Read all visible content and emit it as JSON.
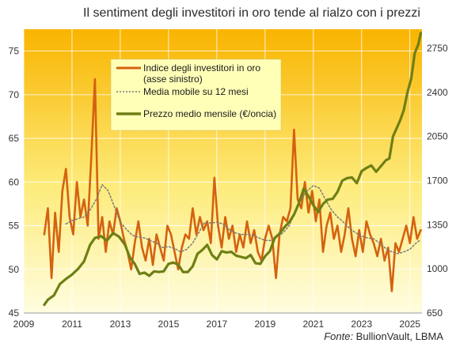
{
  "title": "Il sentiment degli investitori in oro tende al rialzo con i prezzi",
  "source_prefix": "Fonte:",
  "source_text": " BullionVault, LBMA",
  "chart_data": {
    "type": "line",
    "title": "Il sentiment degli investitori in oro tende al rialzo con i prezzi",
    "x_ticks": [
      "2009",
      "2011",
      "2013",
      "2015",
      "2017",
      "2019",
      "2021",
      "2023",
      "2025"
    ],
    "x_range": [
      2009.0,
      2025.5
    ],
    "y_left": {
      "ticks": [
        "45",
        "50",
        "55",
        "60",
        "65",
        "70",
        "75"
      ],
      "range": [
        45,
        77.5
      ]
    },
    "y_right": {
      "ticks": [
        "650",
        "1000",
        "1350",
        "1700",
        "2050",
        "2400",
        "2750"
      ],
      "range": [
        650,
        2900
      ]
    },
    "grid": true,
    "legend_position": "top-center",
    "colors": {
      "index": "#d4620f",
      "moving_average": "#7a7a7a",
      "price": "#6e7f14",
      "bg_top": "#f9b400",
      "bg_bottom": "#fffccf"
    },
    "series": [
      {
        "name": "Indice degli investitori in oro",
        "name_line2": "(asse sinistro)",
        "axis": "left",
        "x": [
          2009.85,
          2010.0,
          2010.15,
          2010.3,
          2010.45,
          2010.6,
          2010.75,
          2010.9,
          2011.05,
          2011.2,
          2011.35,
          2011.5,
          2011.65,
          2011.8,
          2011.95,
          2012.1,
          2012.25,
          2012.4,
          2012.55,
          2012.7,
          2012.85,
          2013.0,
          2013.15,
          2013.3,
          2013.45,
          2013.6,
          2013.75,
          2013.9,
          2014.05,
          2014.2,
          2014.35,
          2014.5,
          2014.65,
          2014.8,
          2014.95,
          2015.1,
          2015.25,
          2015.4,
          2015.55,
          2015.7,
          2015.85,
          2016.0,
          2016.15,
          2016.3,
          2016.45,
          2016.6,
          2016.75,
          2016.9,
          2017.05,
          2017.2,
          2017.35,
          2017.5,
          2017.65,
          2017.8,
          2017.95,
          2018.1,
          2018.25,
          2018.4,
          2018.55,
          2018.7,
          2018.85,
          2019.0,
          2019.15,
          2019.3,
          2019.45,
          2019.6,
          2019.75,
          2019.9,
          2020.05,
          2020.2,
          2020.35,
          2020.5,
          2020.65,
          2020.8,
          2020.95,
          2021.1,
          2021.25,
          2021.4,
          2021.55,
          2021.7,
          2021.85,
          2022.0,
          2022.15,
          2022.3,
          2022.45,
          2022.6,
          2022.75,
          2022.9,
          2023.05,
          2023.2,
          2023.35,
          2023.5,
          2023.65,
          2023.8,
          2023.95,
          2024.1,
          2024.25,
          2024.4,
          2024.55,
          2024.7,
          2024.85,
          2025.0,
          2025.15,
          2025.3,
          2025.45
        ],
        "values": [
          54.0,
          57.0,
          49.0,
          56.5,
          52.0,
          59.0,
          61.5,
          56.0,
          54.0,
          60.0,
          56.0,
          58.0,
          55.0,
          63.0,
          71.8,
          53.5,
          56.0,
          52.0,
          55.5,
          54.0,
          57.0,
          55.5,
          53.5,
          52.0,
          50.0,
          53.0,
          55.5,
          52.5,
          51.0,
          53.5,
          50.5,
          54.0,
          52.5,
          51.0,
          55.0,
          54.0,
          52.0,
          50.0,
          52.5,
          54.0,
          53.5,
          57.0,
          54.0,
          56.0,
          54.5,
          55.5,
          53.0,
          60.5,
          55.0,
          52.5,
          56.0,
          53.5,
          55.0,
          52.0,
          54.0,
          52.5,
          55.5,
          53.0,
          54.5,
          52.0,
          51.0,
          53.5,
          55.0,
          53.5,
          49.0,
          54.0,
          56.0,
          55.5,
          57.0,
          66.0,
          58.0,
          57.0,
          60.0,
          56.5,
          59.0,
          55.5,
          58.0,
          52.0,
          55.0,
          56.5,
          53.5,
          55.0,
          52.0,
          54.0,
          57.0,
          53.5,
          51.5,
          54.5,
          52.0,
          55.5,
          54.0,
          53.0,
          51.5,
          53.5,
          51.0,
          52.5,
          47.5,
          53.0,
          52.0,
          53.5,
          55.0,
          53.0,
          56.0,
          53.5,
          54.5
        ]
      },
      {
        "name": "Media mobile su 12 mesi",
        "axis": "left",
        "x": [
          2010.75,
          2011.0,
          2011.25,
          2011.5,
          2011.75,
          2012.0,
          2012.25,
          2012.5,
          2012.75,
          2013.0,
          2013.25,
          2013.5,
          2013.75,
          2014.0,
          2014.25,
          2014.5,
          2014.75,
          2015.0,
          2015.25,
          2015.5,
          2015.75,
          2016.0,
          2016.25,
          2016.5,
          2016.75,
          2017.0,
          2017.25,
          2017.5,
          2017.75,
          2018.0,
          2018.25,
          2018.5,
          2018.75,
          2019.0,
          2019.25,
          2019.5,
          2019.75,
          2020.0,
          2020.25,
          2020.5,
          2020.75,
          2021.0,
          2021.25,
          2021.5,
          2021.75,
          2022.0,
          2022.25,
          2022.5,
          2022.75,
          2023.0,
          2023.25,
          2023.5,
          2023.75,
          2024.0,
          2024.25,
          2024.5,
          2024.75,
          2025.0,
          2025.25,
          2025.45
        ],
        "values": [
          55.2,
          55.6,
          55.8,
          56.0,
          56.8,
          58.0,
          59.7,
          59.0,
          57.2,
          55.4,
          54.6,
          53.9,
          53.7,
          53.6,
          53.3,
          53.0,
          52.5,
          52.6,
          52.4,
          52.0,
          52.3,
          53.0,
          54.2,
          55.4,
          55.3,
          55.4,
          55.2,
          54.6,
          54.2,
          54.0,
          54.0,
          53.9,
          53.6,
          53.3,
          53.3,
          53.7,
          54.2,
          55.0,
          56.6,
          58.0,
          59.0,
          59.6,
          59.3,
          58.0,
          56.8,
          56.0,
          55.4,
          54.7,
          54.2,
          53.8,
          53.6,
          53.5,
          53.0,
          52.4,
          52.0,
          51.8,
          52.0,
          52.3,
          53.0,
          53.4
        ]
      },
      {
        "name": "Prezzo medio mensile (€/oncia)",
        "axis": "right",
        "x": [
          2009.85,
          2010.0,
          2010.25,
          2010.5,
          2010.75,
          2011.0,
          2011.25,
          2011.5,
          2011.75,
          2011.95,
          2012.2,
          2012.45,
          2012.7,
          2012.95,
          2013.2,
          2013.4,
          2013.6,
          2013.8,
          2014.0,
          2014.2,
          2014.4,
          2014.6,
          2014.8,
          2015.0,
          2015.2,
          2015.4,
          2015.6,
          2015.8,
          2016.0,
          2016.2,
          2016.4,
          2016.6,
          2016.8,
          2017.0,
          2017.2,
          2017.4,
          2017.6,
          2017.8,
          2018.0,
          2018.2,
          2018.4,
          2018.6,
          2018.8,
          2019.0,
          2019.2,
          2019.4,
          2019.6,
          2019.8,
          2020.0,
          2020.2,
          2020.4,
          2020.6,
          2020.8,
          2021.0,
          2021.2,
          2021.4,
          2021.6,
          2021.8,
          2022.0,
          2022.2,
          2022.4,
          2022.6,
          2022.8,
          2023.0,
          2023.2,
          2023.4,
          2023.6,
          2023.8,
          2024.0,
          2024.15,
          2024.3,
          2024.45,
          2024.6,
          2024.75,
          2024.9,
          2025.05,
          2025.2,
          2025.35,
          2025.45
        ],
        "values": [
          715,
          755,
          790,
          880,
          920,
          955,
          1000,
          1060,
          1190,
          1245,
          1260,
          1225,
          1285,
          1255,
          1190,
          1090,
          1040,
          960,
          970,
          945,
          980,
          975,
          980,
          1040,
          1050,
          1035,
          975,
          975,
          1020,
          1120,
          1150,
          1190,
          1110,
          1075,
          1140,
          1130,
          1135,
          1105,
          1095,
          1085,
          1110,
          1045,
          1040,
          1100,
          1140,
          1245,
          1280,
          1330,
          1370,
          1430,
          1520,
          1635,
          1575,
          1505,
          1450,
          1515,
          1550,
          1555,
          1610,
          1700,
          1720,
          1725,
          1680,
          1775,
          1800,
          1820,
          1770,
          1815,
          1860,
          1875,
          2050,
          2115,
          2180,
          2260,
          2400,
          2505,
          2710,
          2780,
          2870
        ]
      }
    ]
  }
}
